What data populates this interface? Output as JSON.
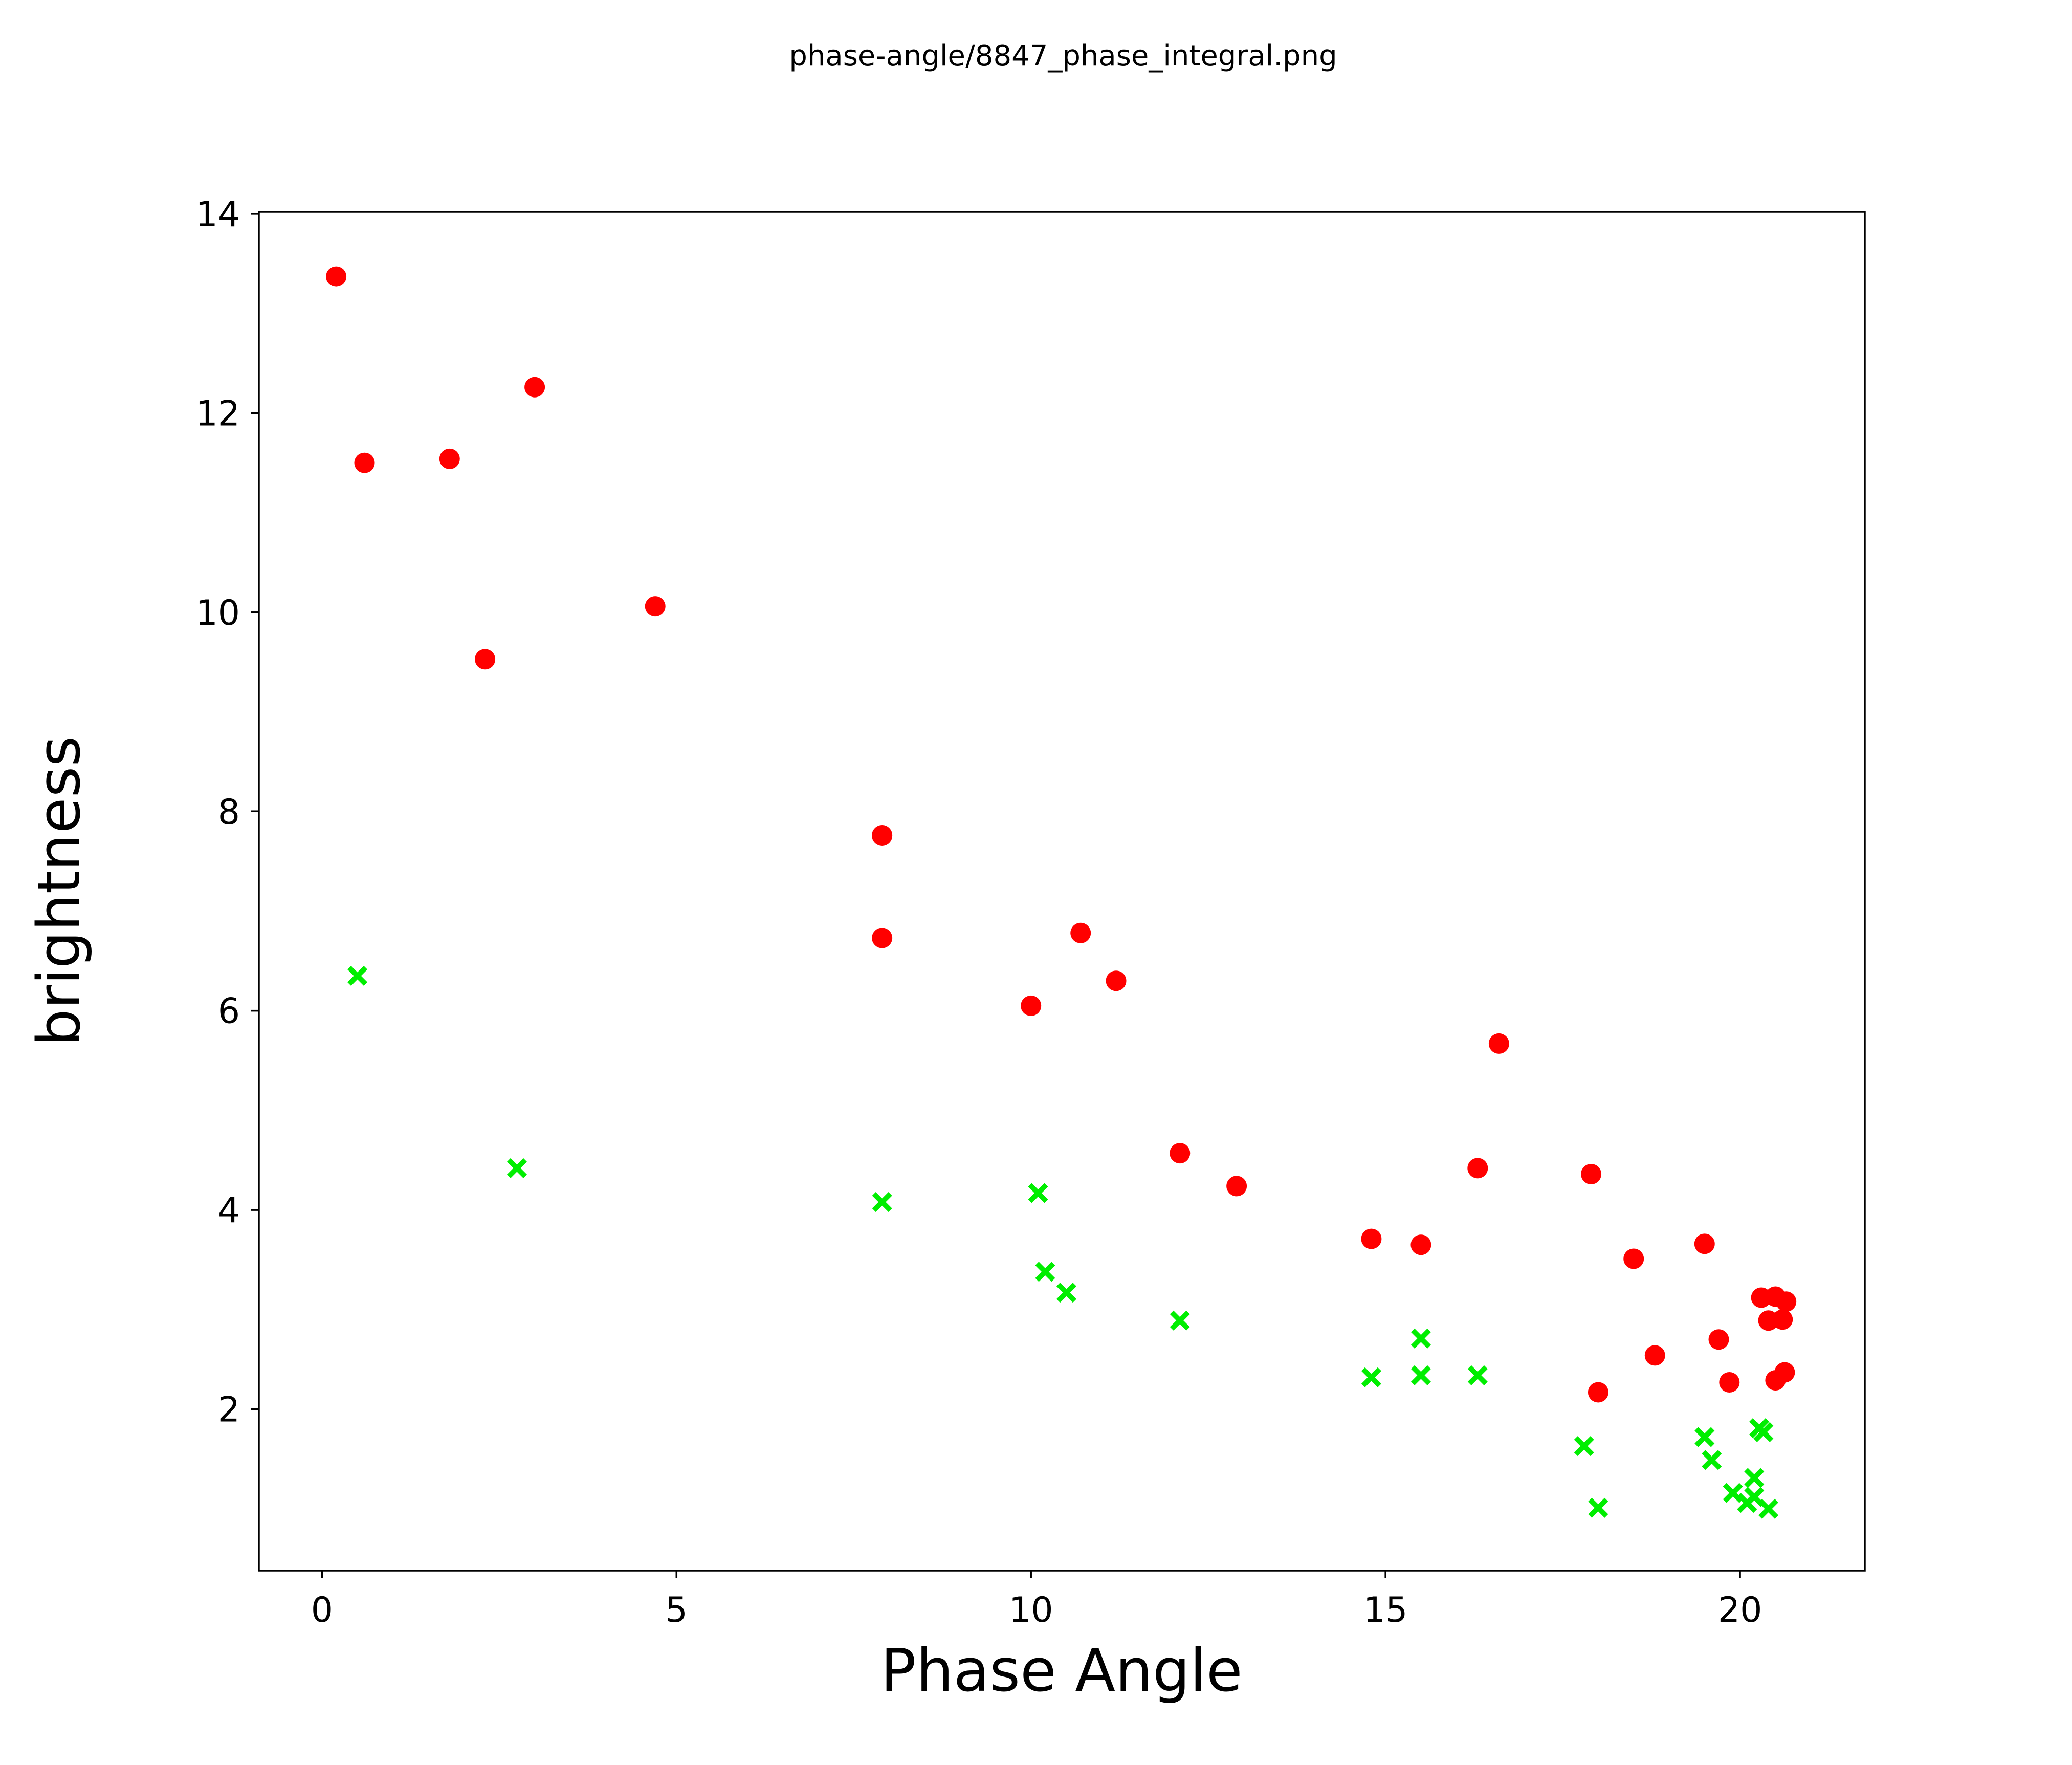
{
  "figure": {
    "background": "#ffffff",
    "text_color": "#000000"
  },
  "chart_data": {
    "type": "scatter",
    "title": "phase-angle/8847_phase_integral.png",
    "xlabel": "Phase Angle",
    "ylabel": "brightness",
    "xlim": [
      -0.89,
      21.76
    ],
    "ylim": [
      0.38,
      14.02
    ],
    "xticks": [
      0,
      5,
      10,
      15,
      20
    ],
    "yticks": [
      2,
      4,
      6,
      8,
      10,
      12,
      14
    ],
    "grid": false,
    "legend": "none",
    "series": [
      {
        "name": "red-circle-series",
        "marker": "circle",
        "color": "#ff0000",
        "points": [
          [
            0.2,
            13.37
          ],
          [
            0.6,
            11.5
          ],
          [
            1.8,
            11.54
          ],
          [
            2.3,
            9.53
          ],
          [
            3.0,
            12.26
          ],
          [
            4.7,
            10.06
          ],
          [
            7.9,
            7.76
          ],
          [
            7.9,
            6.73
          ],
          [
            10.0,
            6.05
          ],
          [
            10.7,
            6.78
          ],
          [
            11.2,
            6.3
          ],
          [
            12.1,
            4.57
          ],
          [
            12.9,
            4.24
          ],
          [
            14.8,
            3.71
          ],
          [
            15.5,
            3.65
          ],
          [
            16.3,
            4.42
          ],
          [
            16.6,
            5.67
          ],
          [
            17.9,
            4.36
          ],
          [
            18.0,
            2.17
          ],
          [
            18.5,
            3.51
          ],
          [
            18.8,
            2.54
          ],
          [
            19.5,
            3.66
          ],
          [
            19.7,
            2.7
          ],
          [
            19.85,
            2.27
          ],
          [
            20.3,
            3.12
          ],
          [
            20.5,
            3.13
          ],
          [
            20.65,
            3.08
          ],
          [
            20.4,
            2.89
          ],
          [
            20.6,
            2.9
          ],
          [
            20.5,
            2.29
          ],
          [
            20.63,
            2.37
          ]
        ]
      },
      {
        "name": "green-x-series",
        "marker": "x",
        "color": "#00ee00",
        "points": [
          [
            0.5,
            6.35
          ],
          [
            2.75,
            4.42
          ],
          [
            7.9,
            4.08
          ],
          [
            10.1,
            4.17
          ],
          [
            10.2,
            3.38
          ],
          [
            10.5,
            3.17
          ],
          [
            12.1,
            2.89
          ],
          [
            14.8,
            2.32
          ],
          [
            15.5,
            2.71
          ],
          [
            15.5,
            2.34
          ],
          [
            16.3,
            2.34
          ],
          [
            17.8,
            1.63
          ],
          [
            18.0,
            1.01
          ],
          [
            19.5,
            1.72
          ],
          [
            19.6,
            1.49
          ],
          [
            20.27,
            1.81
          ],
          [
            20.33,
            1.77
          ],
          [
            19.9,
            1.16
          ],
          [
            20.2,
            1.31
          ],
          [
            20.1,
            1.06
          ],
          [
            20.2,
            1.12
          ],
          [
            20.4,
            1.0
          ]
        ]
      }
    ]
  }
}
